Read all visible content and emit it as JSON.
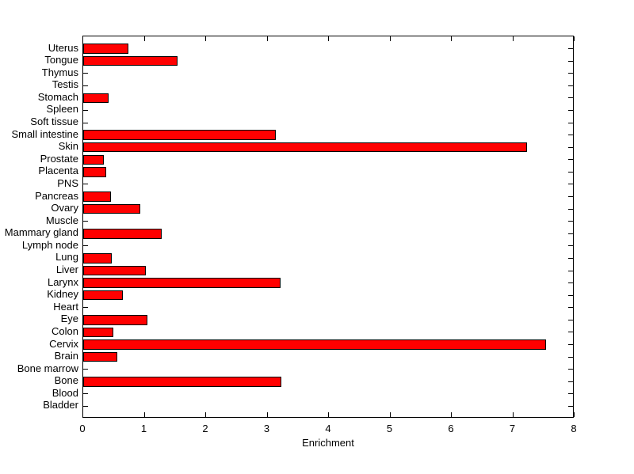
{
  "chart_data": {
    "type": "bar",
    "orientation": "horizontal",
    "title": "",
    "xlabel": "Enrichment",
    "ylabel": "",
    "xlim": [
      0,
      8
    ],
    "xticks": [
      0,
      1,
      2,
      3,
      4,
      5,
      6,
      7,
      8
    ],
    "grid": false,
    "legend": null,
    "bar_color": "#FF0000",
    "bar_edge_color": "#000000",
    "axis_color": "#000000",
    "background_color": "#FFFFFF",
    "categories": [
      "Uterus",
      "Tongue",
      "Thymus",
      "Testis",
      "Stomach",
      "Spleen",
      "Soft tissue",
      "Small intestine",
      "Skin",
      "Prostate",
      "Placenta",
      "PNS",
      "Pancreas",
      "Ovary",
      "Muscle",
      "Mammary gland",
      "Lymph node",
      "Lung",
      "Liver",
      "Larynx",
      "Kidney",
      "Heart",
      "Eye",
      "Colon",
      "Cervix",
      "Brain",
      "Bone marrow",
      "Bone",
      "Blood",
      "Bladder"
    ],
    "values": [
      0.73,
      1.53,
      0,
      0,
      0.41,
      0,
      0,
      3.14,
      7.23,
      0.33,
      0.37,
      0,
      0.45,
      0.93,
      0,
      1.28,
      0,
      0.46,
      1.02,
      3.21,
      0.64,
      0,
      1.05,
      0.49,
      7.54,
      0.56,
      0,
      3.23,
      0,
      0
    ]
  }
}
